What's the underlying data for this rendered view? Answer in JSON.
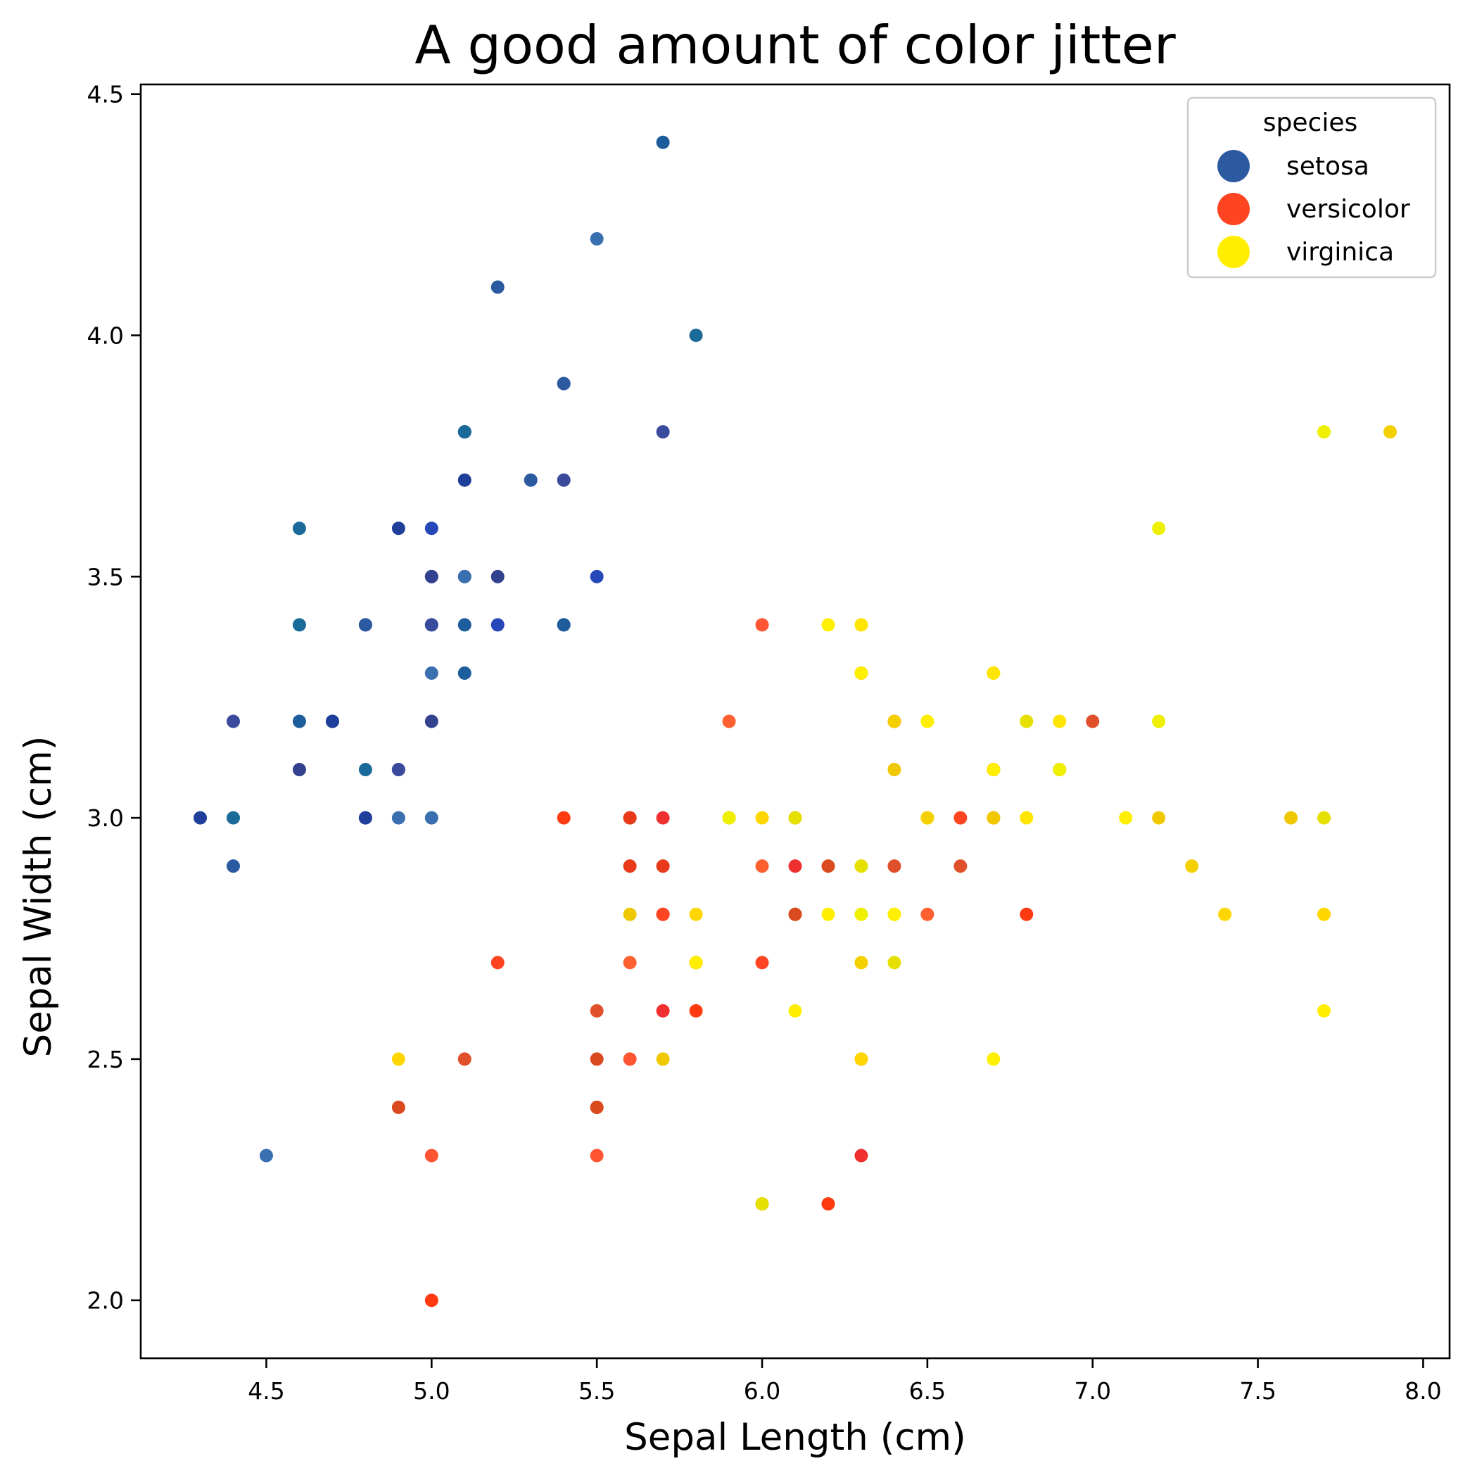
{
  "chart_data": {
    "type": "scatter",
    "title": "A good amount of color jitter",
    "xlabel": "Sepal Length (cm)",
    "ylabel": "Sepal Width (cm)",
    "xlim": [
      4.12,
      8.08
    ],
    "ylim": [
      1.88,
      4.52
    ],
    "xticks": [
      4.5,
      5.0,
      5.5,
      6.0,
      6.5,
      7.0,
      7.5,
      8.0
    ],
    "yticks": [
      2.0,
      2.5,
      3.0,
      3.5,
      4.0,
      4.5
    ],
    "xtick_labels": [
      "4.5",
      "5.0",
      "5.5",
      "6.0",
      "6.5",
      "7.0",
      "7.5",
      "8.0"
    ],
    "ytick_labels": [
      "2.0",
      "2.5",
      "3.0",
      "3.5",
      "4.0",
      "4.5"
    ],
    "grid": false,
    "legend": {
      "title": "species",
      "placement": "upper right"
    },
    "series": [
      {
        "name": "setosa",
        "color": "#2b5aa0",
        "jitter": [
          "#2b5aa0",
          "#1f3f9a",
          "#3a4a9c",
          "#1e5d9c",
          "#2748b8",
          "#3a6fb0",
          "#1a6b9a",
          "#33428e"
        ],
        "points": [
          [
            5.1,
            3.5
          ],
          [
            4.9,
            3.0
          ],
          [
            4.7,
            3.2
          ],
          [
            4.6,
            3.1
          ],
          [
            5.0,
            3.6
          ],
          [
            5.4,
            3.9
          ],
          [
            4.6,
            3.4
          ],
          [
            5.0,
            3.4
          ],
          [
            4.4,
            2.9
          ],
          [
            4.9,
            3.1
          ],
          [
            5.4,
            3.7
          ],
          [
            4.8,
            3.4
          ],
          [
            4.8,
            3.0
          ],
          [
            4.3,
            3.0
          ],
          [
            5.8,
            4.0
          ],
          [
            5.7,
            4.4
          ],
          [
            5.4,
            3.9
          ],
          [
            5.1,
            3.5
          ],
          [
            5.7,
            3.8
          ],
          [
            5.1,
            3.8
          ],
          [
            5.4,
            3.4
          ],
          [
            5.1,
            3.7
          ],
          [
            4.6,
            3.6
          ],
          [
            5.1,
            3.3
          ],
          [
            4.8,
            3.4
          ],
          [
            5.0,
            3.0
          ],
          [
            5.0,
            3.4
          ],
          [
            5.2,
            3.5
          ],
          [
            5.2,
            3.4
          ],
          [
            4.7,
            3.2
          ],
          [
            4.8,
            3.1
          ],
          [
            5.4,
            3.4
          ],
          [
            5.2,
            4.1
          ],
          [
            5.5,
            4.2
          ],
          [
            4.9,
            3.1
          ],
          [
            5.0,
            3.2
          ],
          [
            5.5,
            3.5
          ],
          [
            4.9,
            3.6
          ],
          [
            4.4,
            3.0
          ],
          [
            5.1,
            3.4
          ],
          [
            5.0,
            3.5
          ],
          [
            4.5,
            2.3
          ],
          [
            4.4,
            3.2
          ],
          [
            5.0,
            3.5
          ],
          [
            5.1,
            3.8
          ],
          [
            4.8,
            3.0
          ],
          [
            5.1,
            3.8
          ],
          [
            4.6,
            3.2
          ],
          [
            5.3,
            3.7
          ],
          [
            5.0,
            3.3
          ]
        ]
      },
      {
        "name": "versicolor",
        "color": "#ff4422",
        "jitter": [
          "#ff4422",
          "#e83a1a",
          "#ff5533",
          "#e0502a",
          "#f03030",
          "#ff3a10",
          "#d94a1e",
          "#ff6030"
        ],
        "points": [
          [
            7.0,
            3.2
          ],
          [
            6.4,
            3.2
          ],
          [
            6.9,
            3.1
          ],
          [
            5.5,
            2.3
          ],
          [
            6.5,
            2.8
          ],
          [
            5.7,
            2.8
          ],
          [
            6.3,
            3.3
          ],
          [
            4.9,
            2.4
          ],
          [
            6.6,
            2.9
          ],
          [
            5.2,
            2.7
          ],
          [
            5.0,
            2.0
          ],
          [
            5.9,
            3.0
          ],
          [
            6.0,
            2.2
          ],
          [
            6.1,
            2.9
          ],
          [
            5.6,
            2.9
          ],
          [
            6.7,
            3.1
          ],
          [
            5.6,
            3.0
          ],
          [
            5.8,
            2.7
          ],
          [
            6.2,
            2.2
          ],
          [
            5.6,
            2.5
          ],
          [
            5.9,
            3.2
          ],
          [
            6.1,
            2.8
          ],
          [
            6.3,
            2.5
          ],
          [
            6.1,
            2.8
          ],
          [
            6.4,
            2.9
          ],
          [
            6.6,
            3.0
          ],
          [
            6.8,
            2.8
          ],
          [
            6.7,
            3.0
          ],
          [
            6.0,
            2.9
          ],
          [
            5.7,
            2.6
          ],
          [
            5.5,
            2.4
          ],
          [
            5.5,
            2.4
          ],
          [
            5.8,
            2.7
          ],
          [
            6.0,
            2.7
          ],
          [
            5.4,
            3.0
          ],
          [
            6.0,
            3.4
          ],
          [
            6.7,
            3.1
          ],
          [
            6.3,
            2.3
          ],
          [
            5.6,
            3.0
          ],
          [
            5.5,
            2.5
          ],
          [
            5.5,
            2.6
          ],
          [
            6.1,
            3.0
          ],
          [
            5.8,
            2.6
          ],
          [
            5.0,
            2.3
          ],
          [
            5.6,
            2.7
          ],
          [
            5.7,
            3.0
          ],
          [
            5.7,
            2.9
          ],
          [
            6.2,
            2.9
          ],
          [
            5.1,
            2.5
          ],
          [
            5.7,
            2.8
          ]
        ]
      },
      {
        "name": "virginica",
        "color": "#ffee00",
        "jitter": [
          "#ffee00",
          "#f5d000",
          "#ffe500",
          "#eef000",
          "#ffd700",
          "#e6e000",
          "#fff000",
          "#f0c800"
        ],
        "points": [
          [
            6.3,
            3.3
          ],
          [
            5.8,
            2.7
          ],
          [
            7.1,
            3.0
          ],
          [
            6.3,
            2.9
          ],
          [
            6.5,
            3.0
          ],
          [
            7.6,
            3.0
          ],
          [
            4.9,
            2.5
          ],
          [
            7.3,
            2.9
          ],
          [
            6.7,
            2.5
          ],
          [
            7.2,
            3.6
          ],
          [
            6.5,
            3.2
          ],
          [
            6.4,
            2.7
          ],
          [
            6.8,
            3.0
          ],
          [
            5.7,
            2.5
          ],
          [
            5.8,
            2.8
          ],
          [
            6.4,
            3.2
          ],
          [
            6.5,
            3.0
          ],
          [
            7.7,
            3.8
          ],
          [
            7.7,
            2.6
          ],
          [
            6.0,
            2.2
          ],
          [
            6.9,
            3.2
          ],
          [
            5.6,
            2.8
          ],
          [
            7.7,
            2.8
          ],
          [
            6.3,
            2.7
          ],
          [
            6.7,
            3.3
          ],
          [
            7.2,
            3.2
          ],
          [
            6.2,
            2.8
          ],
          [
            6.1,
            3.0
          ],
          [
            6.4,
            2.8
          ],
          [
            7.2,
            3.0
          ],
          [
            7.4,
            2.8
          ],
          [
            7.9,
            3.8
          ],
          [
            6.4,
            2.8
          ],
          [
            6.3,
            2.8
          ],
          [
            6.1,
            2.6
          ],
          [
            7.7,
            3.0
          ],
          [
            6.3,
            3.4
          ],
          [
            6.4,
            3.1
          ],
          [
            6.0,
            3.0
          ],
          [
            6.9,
            3.1
          ],
          [
            6.7,
            3.1
          ],
          [
            6.9,
            3.1
          ],
          [
            5.8,
            2.7
          ],
          [
            6.8,
            3.2
          ],
          [
            6.7,
            3.3
          ],
          [
            6.7,
            3.0
          ],
          [
            6.3,
            2.5
          ],
          [
            6.5,
            3.0
          ],
          [
            6.2,
            3.4
          ],
          [
            5.9,
            3.0
          ]
        ]
      }
    ]
  }
}
